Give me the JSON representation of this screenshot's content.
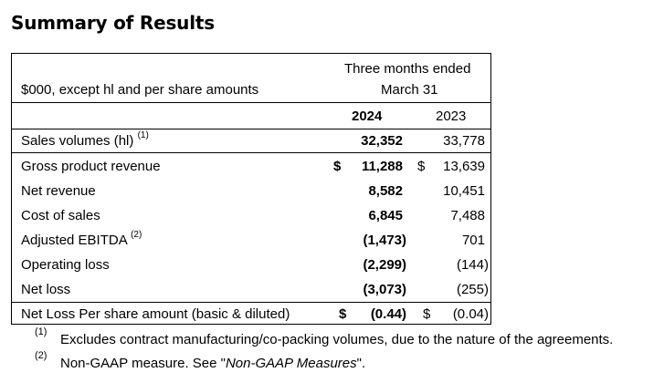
{
  "title": "Summary of Results",
  "table": {
    "units_label": "$000, except hl and per share amounts",
    "period_header_line1": "Three months ended",
    "period_header_line2": "March 31",
    "col_current": "2024",
    "col_prior": "2023",
    "rows": [
      {
        "label": "Sales volumes (hl)",
        "note": "(1)",
        "cur_dollar": "",
        "current": "32,352",
        "prior_dollar": "",
        "prior": "33,778"
      },
      {
        "label": "Gross product revenue",
        "note": "",
        "cur_dollar": "$",
        "current": "11,288",
        "prior_dollar": "$",
        "prior": "13,639"
      },
      {
        "label": "Net revenue",
        "note": "",
        "cur_dollar": "",
        "current": "8,582",
        "prior_dollar": "",
        "prior": "10,451"
      },
      {
        "label": "Cost of sales",
        "note": "",
        "cur_dollar": "",
        "current": "6,845",
        "prior_dollar": "",
        "prior": "7,488"
      },
      {
        "label": "Adjusted EBITDA",
        "note": "(2)",
        "cur_dollar": "",
        "current": "(1,473)",
        "prior_dollar": "",
        "prior": "701"
      },
      {
        "label": "Operating loss",
        "note": "",
        "cur_dollar": "",
        "current": "(2,299)",
        "prior_dollar": "",
        "prior": "(144)"
      },
      {
        "label": "Net loss",
        "note": "",
        "cur_dollar": "",
        "current": "(3,073)",
        "prior_dollar": "",
        "prior": "(255)"
      },
      {
        "label": "Net Loss Per share amount (basic & diluted)",
        "note": "",
        "cur_dollar": "$",
        "current": "(0.44)",
        "prior_dollar": "$",
        "prior": "(0.04)"
      }
    ]
  },
  "footnotes": {
    "fn1_marker": "(1)",
    "fn1_text": "Excludes contract manufacturing/co-packing volumes, due to the nature of the agreements.",
    "fn2_marker": "(2)",
    "fn2_text_before": "Non-GAAP measure. See \"",
    "fn2_link": "Non-GAAP Measures",
    "fn2_text_after": "\"."
  }
}
